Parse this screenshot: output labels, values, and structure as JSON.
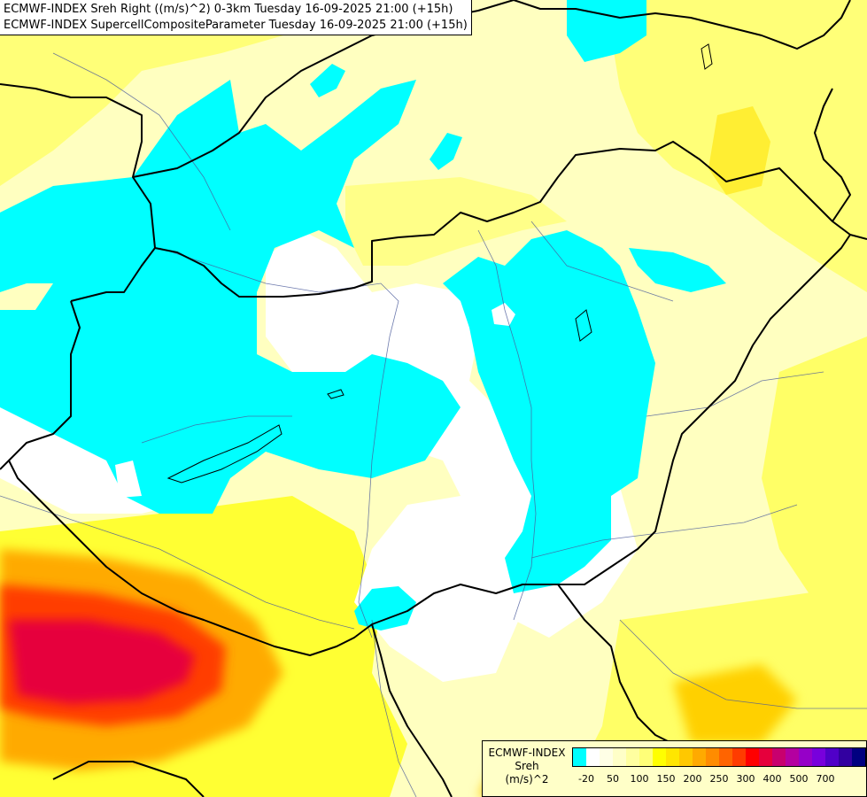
{
  "header": {
    "line1": "ECMWF-INDEX Sreh Right ((m/s)^2) 0-3km Tuesday 16-09-2025 21:00 (+15h)",
    "line2": "ECMWF-INDEX SupercellCompositeParameter Tuesday 16-09-2025 21:00 (+15h)"
  },
  "legend": {
    "title": "ECMWF-INDEX",
    "variable": "Sreh",
    "unit": "(m/s)^2",
    "colors": [
      "#00ffff",
      "#ffffff",
      "#ffffe6",
      "#ffffc8",
      "#ffffa0",
      "#ffff78",
      "#ffff00",
      "#ffe600",
      "#ffc800",
      "#ffaa00",
      "#ff8c00",
      "#ff6400",
      "#ff3c00",
      "#ff0000",
      "#e6003c",
      "#c8006e",
      "#b400a0",
      "#9600c8",
      "#7800dc",
      "#5000c8",
      "#3200a0",
      "#000080"
    ],
    "ticks": [
      {
        "label": "-20",
        "idx": 1
      },
      {
        "label": "50",
        "idx": 3
      },
      {
        "label": "100",
        "idx": 5
      },
      {
        "label": "150",
        "idx": 7
      },
      {
        "label": "200",
        "idx": 9
      },
      {
        "label": "250",
        "idx": 11
      },
      {
        "label": "300",
        "idx": 13
      },
      {
        "label": "400",
        "idx": 15
      },
      {
        "label": "500",
        "idx": 17
      },
      {
        "label": "700",
        "idx": 19
      }
    ]
  }
}
